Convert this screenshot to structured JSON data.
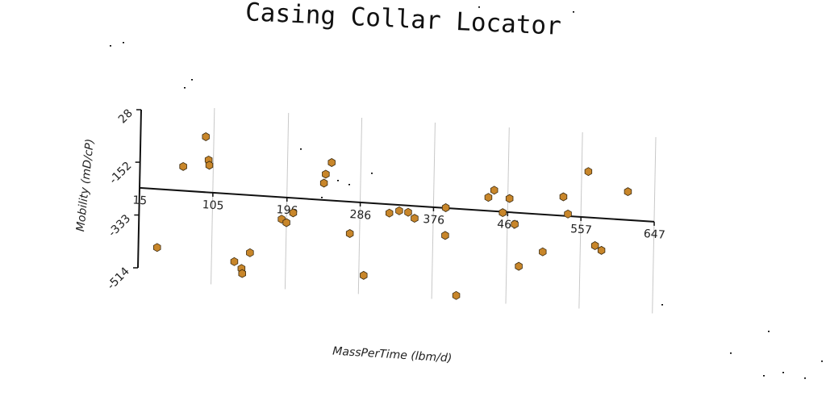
{
  "chart_data": {
    "type": "scatter",
    "title": "Casing Collar Locator",
    "xlabel": "MassPerTime (lbm/d)",
    "ylabel": "Mobility (mD/cP)",
    "x_ticks": [
      "15",
      "105",
      "196",
      "286",
      "376",
      "467",
      "557",
      "647"
    ],
    "y_ticks": [
      "28",
      "-152",
      "-333",
      "-514"
    ],
    "xlim": [
      15,
      647
    ],
    "ylim": [
      -514,
      28
    ],
    "grid": "vertical",
    "marker_color": "#c8862a",
    "points": [
      {
        "x": 38,
        "y": -440
      },
      {
        "x": 68,
        "y": -157
      },
      {
        "x": 95,
        "y": -50
      },
      {
        "x": 99,
        "y": -129
      },
      {
        "x": 100,
        "y": -147
      },
      {
        "x": 133,
        "y": -471
      },
      {
        "x": 142,
        "y": -493
      },
      {
        "x": 143,
        "y": -510
      },
      {
        "x": 152,
        "y": -437
      },
      {
        "x": 190,
        "y": -315
      },
      {
        "x": 196,
        "y": -326
      },
      {
        "x": 204,
        "y": -291
      },
      {
        "x": 241,
        "y": -182
      },
      {
        "x": 243,
        "y": -151
      },
      {
        "x": 250,
        "y": -110
      },
      {
        "x": 274,
        "y": -349
      },
      {
        "x": 292,
        "y": -489
      },
      {
        "x": 322,
        "y": -270
      },
      {
        "x": 334,
        "y": -260
      },
      {
        "x": 345,
        "y": -263
      },
      {
        "x": 353,
        "y": -282
      },
      {
        "x": 391,
        "y": -334
      },
      {
        "x": 391,
        "y": -239
      },
      {
        "x": 406,
        "y": -537
      },
      {
        "x": 443,
        "y": -194
      },
      {
        "x": 450,
        "y": -168
      },
      {
        "x": 461,
        "y": -243
      },
      {
        "x": 469,
        "y": -193
      },
      {
        "x": 476,
        "y": -280
      },
      {
        "x": 482,
        "y": -423
      },
      {
        "x": 511,
        "y": -368
      },
      {
        "x": 535,
        "y": -175
      },
      {
        "x": 541,
        "y": -233
      },
      {
        "x": 565,
        "y": -83
      },
      {
        "x": 575,
        "y": -335
      },
      {
        "x": 583,
        "y": -350
      },
      {
        "x": 614,
        "y": -143
      }
    ]
  }
}
